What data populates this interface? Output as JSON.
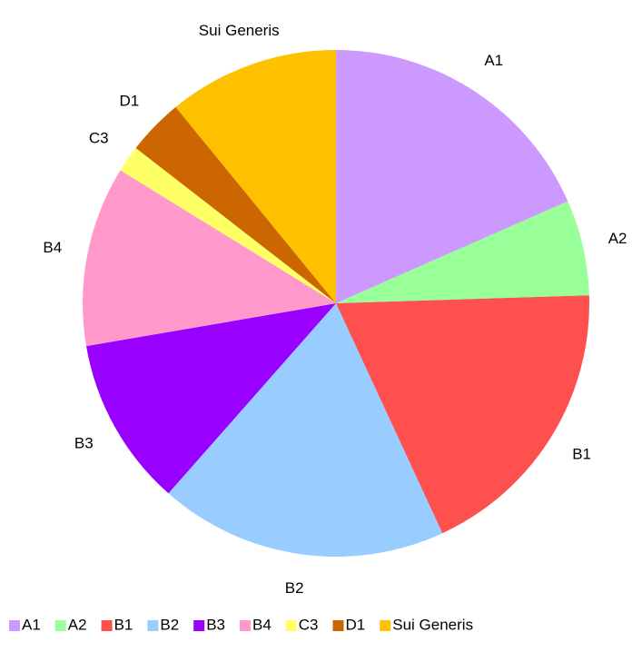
{
  "chart_data": {
    "type": "pie",
    "categories": [
      "A1",
      "A2",
      "B1",
      "B2",
      "B3",
      "B4",
      "C3",
      "D1",
      "Sui Generis"
    ],
    "values": [
      18.4,
      6.1,
      18.6,
      18.4,
      10.8,
      11.5,
      1.7,
      3.6,
      10.9
    ],
    "colors": [
      "#cc99ff",
      "#99ff99",
      "#ff5050",
      "#99ccff",
      "#9900ff",
      "#ff99cc",
      "#ffff66",
      "#cc6600",
      "#ffc000"
    ],
    "legend": "bottom"
  }
}
